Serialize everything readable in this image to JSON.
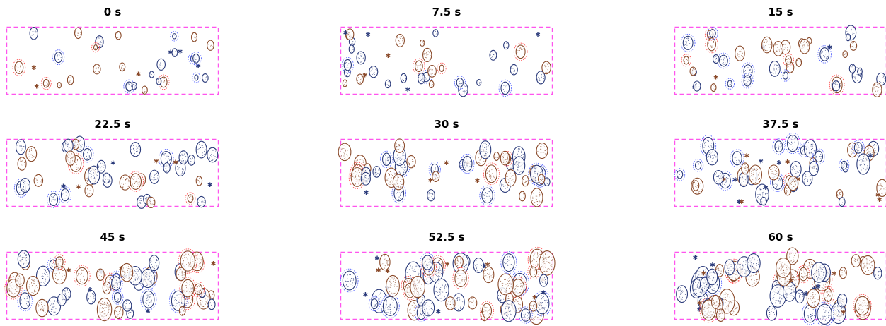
{
  "figure": {
    "panels": [
      {
        "title": "0 s",
        "time_s": 0
      },
      {
        "title": "7.5 s",
        "time_s": 7.5
      },
      {
        "title": "15 s",
        "time_s": 15
      },
      {
        "title": "22.5 s",
        "time_s": 22.5
      },
      {
        "title": "30 s",
        "time_s": 30
      },
      {
        "title": "37.5 s",
        "time_s": 37.5
      },
      {
        "title": "45 s",
        "time_s": 45
      },
      {
        "title": "52.5 s",
        "time_s": 52.5
      },
      {
        "title": "60 s",
        "time_s": 60
      }
    ],
    "colors": {
      "boundary": "#ff55ee",
      "cell_blue": "#2a3a7a",
      "cell_brown": "#8a4a2a",
      "halo_blue": "#4a5aff",
      "halo_red": "#ff4040"
    }
  }
}
